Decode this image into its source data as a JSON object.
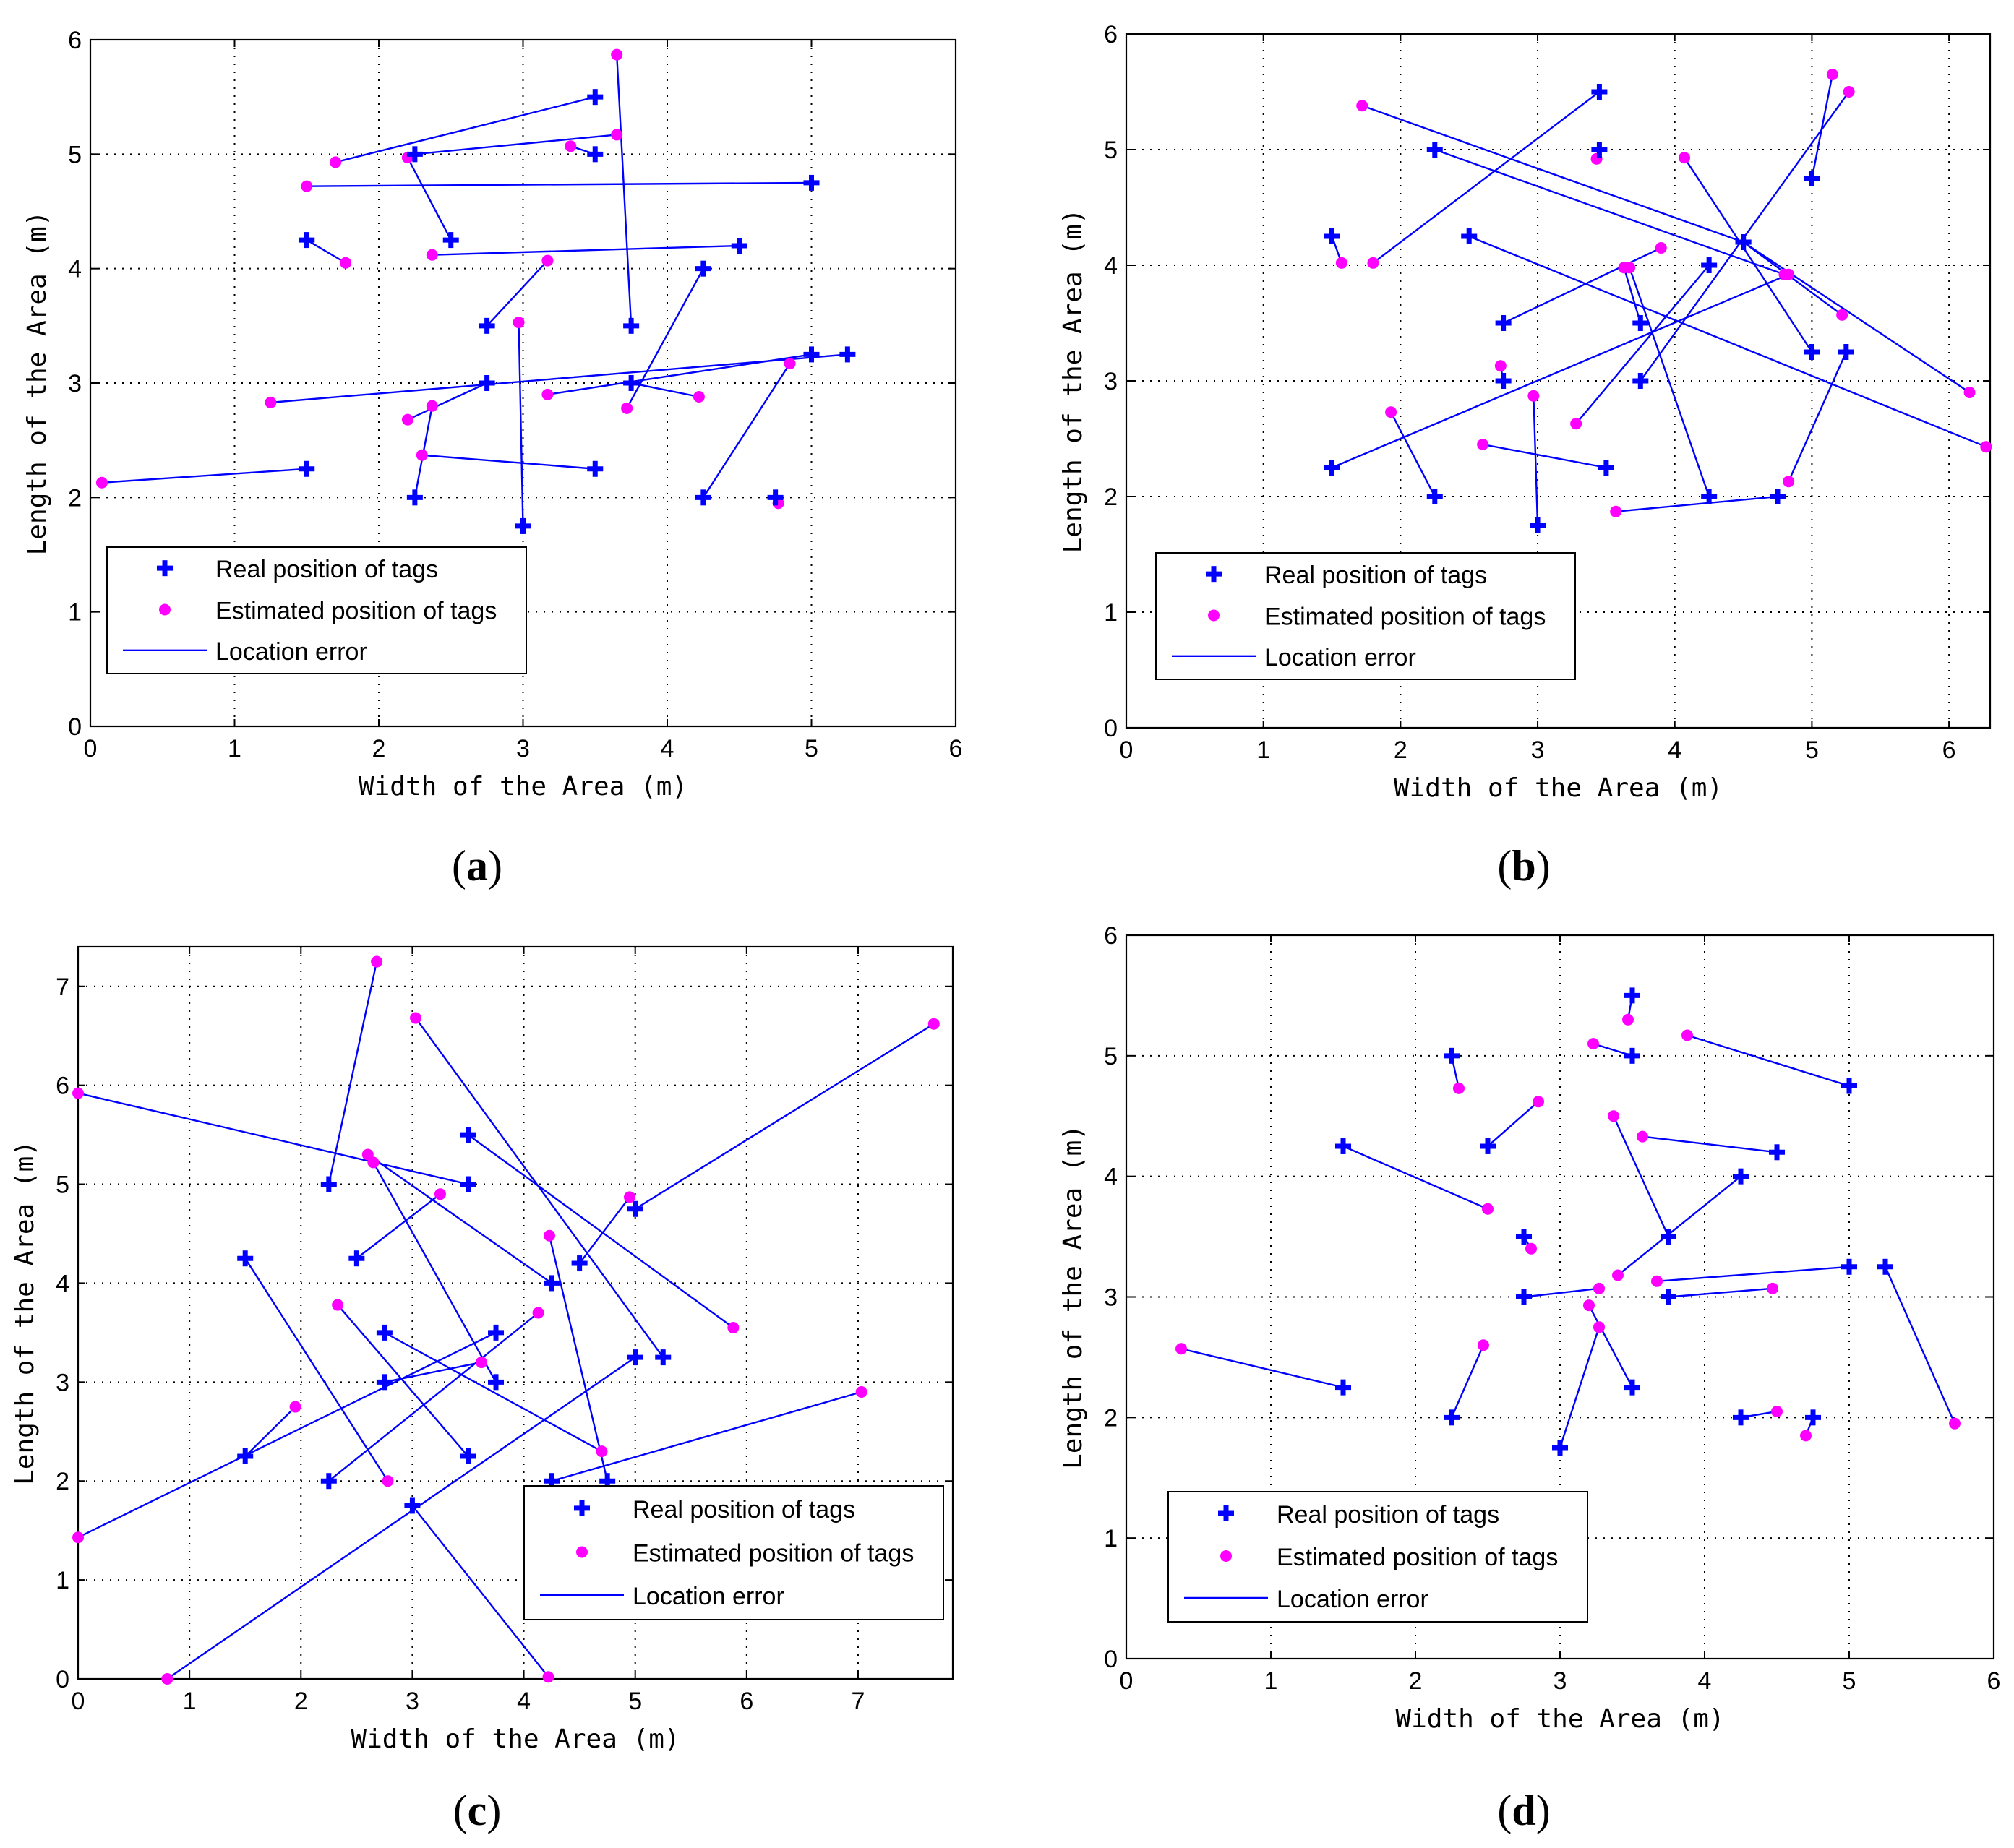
{
  "colors": {
    "real": "#0000ff",
    "estimated": "#ff00ff",
    "error_line": "#0000ff"
  },
  "icons": {
    "real": "plus-marker-icon",
    "estimated": "dot-marker-icon",
    "error": "line-segment-icon"
  },
  "chart_data": [
    {
      "id": "a",
      "type": "scatter",
      "caption_letter": "a",
      "xlabel": "Width of the Area (m)",
      "ylabel": "Length of the Area (m)",
      "xlim": [
        0,
        6
      ],
      "ylim": [
        0,
        6
      ],
      "xticks": [
        0,
        1,
        2,
        3,
        4,
        5,
        6
      ],
      "yticks": [
        0,
        1,
        2,
        3,
        4,
        5,
        6
      ],
      "grid": true,
      "legend_position": "lower-left",
      "legend": [
        "Real position of tags",
        "Estimated position of tags",
        "Location error"
      ],
      "pairs": [
        {
          "real": [
            3.5,
            5.5
          ],
          "est": [
            1.7,
            4.93
          ]
        },
        {
          "real": [
            2.25,
            5.0
          ],
          "est": [
            3.65,
            5.17
          ]
        },
        {
          "real": [
            3.5,
            5.0
          ],
          "est": [
            3.33,
            5.07
          ]
        },
        {
          "real": [
            2.5,
            4.25
          ],
          "est": [
            2.2,
            4.97
          ]
        },
        {
          "real": [
            3.75,
            3.5
          ],
          "est": [
            3.65,
            5.87
          ]
        },
        {
          "real": [
            5.0,
            4.75
          ],
          "est": [
            1.5,
            4.72
          ]
        },
        {
          "real": [
            1.5,
            4.25
          ],
          "est": [
            1.77,
            4.05
          ]
        },
        {
          "real": [
            4.5,
            4.2
          ],
          "est": [
            2.37,
            4.12
          ]
        },
        {
          "real": [
            2.75,
            3.5
          ],
          "est": [
            3.17,
            4.07
          ]
        },
        {
          "real": [
            4.25,
            4.0
          ],
          "est": [
            3.72,
            2.78
          ]
        },
        {
          "real": [
            5.25,
            3.25
          ],
          "est": [
            1.25,
            2.83
          ]
        },
        {
          "real": [
            5.0,
            3.25
          ],
          "est": [
            3.17,
            2.9
          ]
        },
        {
          "real": [
            2.75,
            3.0
          ],
          "est": [
            2.2,
            2.68
          ]
        },
        {
          "real": [
            3.75,
            3.0
          ],
          "est": [
            4.22,
            2.88
          ]
        },
        {
          "real": [
            2.25,
            2.0
          ],
          "est": [
            2.37,
            2.8
          ]
        },
        {
          "real": [
            3.5,
            2.25
          ],
          "est": [
            2.3,
            2.37
          ]
        },
        {
          "real": [
            3.0,
            1.75
          ],
          "est": [
            2.97,
            3.53
          ]
        },
        {
          "real": [
            4.25,
            2.0
          ],
          "est": [
            4.85,
            3.17
          ]
        },
        {
          "real": [
            4.75,
            2.0
          ],
          "est": [
            4.77,
            1.95
          ]
        },
        {
          "real": [
            1.5,
            2.25
          ],
          "est": [
            0.08,
            2.13
          ]
        }
      ]
    },
    {
      "id": "b",
      "type": "scatter",
      "caption_letter": "b",
      "xlabel": "Width of the Area (m)",
      "ylabel": "Length of the Area (m)",
      "xlim": [
        0,
        6.3
      ],
      "ylim": [
        0,
        6
      ],
      "xticks": [
        0,
        1,
        2,
        3,
        4,
        5,
        6
      ],
      "yticks": [
        0,
        1,
        2,
        3,
        4,
        5,
        6
      ],
      "grid": true,
      "legend_position": "lower-left",
      "legend": [
        "Real position of tags",
        "Estimated position of tags",
        "Location error"
      ],
      "pairs": [
        {
          "real": [
            3.45,
            5.5
          ],
          "est": [
            1.8,
            4.02
          ]
        },
        {
          "real": [
            3.45,
            5.0
          ],
          "est": [
            3.43,
            4.92
          ]
        },
        {
          "real": [
            2.25,
            5.0
          ],
          "est": [
            4.8,
            3.92
          ]
        },
        {
          "real": [
            1.5,
            4.25
          ],
          "est": [
            1.57,
            4.02
          ]
        },
        {
          "real": [
            2.5,
            4.25
          ],
          "est": [
            6.27,
            2.43
          ]
        },
        {
          "real": [
            4.5,
            4.2
          ],
          "est": [
            1.72,
            5.38
          ]
        },
        {
          "real": [
            4.25,
            4.0
          ],
          "est": [
            3.28,
            2.63
          ]
        },
        {
          "real": [
            2.75,
            3.5
          ],
          "est": [
            3.9,
            4.15
          ]
        },
        {
          "real": [
            3.75,
            3.5
          ],
          "est": [
            3.63,
            3.98
          ]
        },
        {
          "real": [
            3.75,
            3.0
          ],
          "est": [
            5.27,
            5.5
          ]
        },
        {
          "real": [
            5.0,
            3.25
          ],
          "est": [
            4.07,
            4.93
          ]
        },
        {
          "real": [
            5.0,
            4.75
          ],
          "est": [
            5.15,
            5.65
          ]
        },
        {
          "real": [
            5.25,
            3.25
          ],
          "est": [
            4.83,
            2.13
          ]
        },
        {
          "real": [
            2.75,
            3.0
          ],
          "est": [
            2.73,
            3.13
          ]
        },
        {
          "real": [
            1.5,
            2.25
          ],
          "est": [
            4.83,
            3.92
          ]
        },
        {
          "real": [
            2.25,
            2.0
          ],
          "est": [
            1.93,
            2.73
          ]
        },
        {
          "real": [
            3.5,
            2.25
          ],
          "est": [
            2.6,
            2.45
          ]
        },
        {
          "real": [
            3.0,
            1.75
          ],
          "est": [
            2.97,
            2.87
          ]
        },
        {
          "real": [
            4.25,
            2.0
          ],
          "est": [
            3.67,
            3.98
          ]
        },
        {
          "real": [
            4.75,
            2.0
          ],
          "est": [
            3.57,
            1.87
          ]
        },
        {
          "real": [
            4.5,
            4.2
          ],
          "est": [
            6.15,
            2.9
          ]
        },
        {
          "real": [
            4.5,
            4.2
          ],
          "est": [
            5.22,
            3.57
          ]
        }
      ]
    },
    {
      "id": "c",
      "type": "scatter",
      "caption_letter": "c",
      "xlabel": "Width of the Area (m)",
      "ylabel": "Length of the Area (m)",
      "xlim": [
        0,
        7.85
      ],
      "ylim": [
        0,
        7.4
      ],
      "xticks": [
        0,
        1,
        2,
        3,
        4,
        5,
        6,
        7
      ],
      "yticks": [
        0,
        1,
        2,
        3,
        4,
        5,
        6,
        7
      ],
      "grid": true,
      "legend_position": "lower-right",
      "legend": [
        "Real position of tags",
        "Estimated position of tags",
        "Location error"
      ],
      "pairs": [
        {
          "real": [
            2.25,
            5.0
          ],
          "est": [
            2.68,
            7.25
          ]
        },
        {
          "real": [
            3.5,
            5.0
          ],
          "est": [
            0.0,
            5.92
          ]
        },
        {
          "real": [
            3.5,
            5.5
          ],
          "est": [
            5.88,
            3.55
          ]
        },
        {
          "real": [
            4.25,
            4.0
          ],
          "est": [
            2.6,
            5.3
          ]
        },
        {
          "real": [
            4.75,
            2.0
          ],
          "est": [
            4.23,
            4.48
          ]
        },
        {
          "real": [
            5.0,
            4.75
          ],
          "est": [
            7.68,
            6.62
          ]
        },
        {
          "real": [
            4.5,
            4.2
          ],
          "est": [
            4.95,
            4.87
          ]
        },
        {
          "real": [
            3.75,
            3.0
          ],
          "est": [
            2.65,
            5.22
          ]
        },
        {
          "real": [
            2.5,
            4.25
          ],
          "est": [
            3.25,
            4.9
          ]
        },
        {
          "real": [
            5.25,
            3.25
          ],
          "est": [
            3.03,
            6.68
          ]
        },
        {
          "real": [
            1.5,
            4.25
          ],
          "est": [
            2.78,
            2.0
          ]
        },
        {
          "real": [
            3.5,
            2.25
          ],
          "est": [
            2.33,
            3.78
          ]
        },
        {
          "real": [
            2.75,
            3.5
          ],
          "est": [
            4.7,
            2.3
          ]
        },
        {
          "real": [
            2.25,
            2.0
          ],
          "est": [
            4.13,
            3.7
          ]
        },
        {
          "real": [
            3.75,
            3.5
          ],
          "est": [
            0.0,
            1.43
          ]
        },
        {
          "real": [
            1.5,
            2.25
          ],
          "est": [
            1.95,
            2.75
          ]
        },
        {
          "real": [
            2.75,
            3.0
          ],
          "est": [
            3.62,
            3.2
          ]
        },
        {
          "real": [
            5.0,
            3.25
          ],
          "est": [
            0.8,
            0.0
          ]
        },
        {
          "real": [
            3.0,
            1.75
          ],
          "est": [
            4.22,
            0.02
          ]
        },
        {
          "real": [
            4.25,
            2.0
          ],
          "est": [
            7.03,
            2.9
          ]
        }
      ]
    },
    {
      "id": "d",
      "type": "scatter",
      "caption_letter": "d",
      "xlabel": "Width of the Area (m)",
      "ylabel": "Length of the Area (m)",
      "xlim": [
        0,
        6
      ],
      "ylim": [
        0,
        6
      ],
      "xticks": [
        0,
        1,
        2,
        3,
        4,
        5,
        6
      ],
      "yticks": [
        0,
        1,
        2,
        3,
        4,
        5,
        6
      ],
      "grid": true,
      "legend_position": "lower-left",
      "legend": [
        "Real position of tags",
        "Estimated position of tags",
        "Location error"
      ],
      "pairs": [
        {
          "real": [
            3.5,
            5.5
          ],
          "est": [
            3.47,
            5.3
          ]
        },
        {
          "real": [
            3.5,
            5.0
          ],
          "est": [
            3.23,
            5.1
          ]
        },
        {
          "real": [
            2.25,
            5.0
          ],
          "est": [
            2.3,
            4.73
          ]
        },
        {
          "real": [
            5.0,
            4.75
          ],
          "est": [
            3.88,
            5.17
          ]
        },
        {
          "real": [
            2.5,
            4.25
          ],
          "est": [
            2.85,
            4.62
          ]
        },
        {
          "real": [
            1.5,
            4.25
          ],
          "est": [
            2.5,
            3.73
          ]
        },
        {
          "real": [
            4.5,
            4.2
          ],
          "est": [
            3.57,
            4.33
          ]
        },
        {
          "real": [
            3.75,
            3.5
          ],
          "est": [
            3.37,
            4.5
          ]
        },
        {
          "real": [
            4.25,
            4.0
          ],
          "est": [
            3.4,
            3.18
          ]
        },
        {
          "real": [
            2.75,
            3.5
          ],
          "est": [
            2.8,
            3.4
          ]
        },
        {
          "real": [
            5.0,
            3.25
          ],
          "est": [
            3.67,
            3.13
          ]
        },
        {
          "real": [
            3.75,
            3.0
          ],
          "est": [
            4.47,
            3.07
          ]
        },
        {
          "real": [
            2.75,
            3.0
          ],
          "est": [
            3.27,
            3.07
          ]
        },
        {
          "real": [
            5.25,
            3.25
          ],
          "est": [
            5.73,
            1.95
          ]
        },
        {
          "real": [
            3.5,
            2.25
          ],
          "est": [
            3.2,
            2.93
          ]
        },
        {
          "real": [
            3.0,
            1.75
          ],
          "est": [
            3.27,
            2.75
          ]
        },
        {
          "real": [
            2.25,
            2.0
          ],
          "est": [
            2.47,
            2.6
          ]
        },
        {
          "real": [
            1.5,
            2.25
          ],
          "est": [
            0.38,
            2.57
          ]
        },
        {
          "real": [
            4.25,
            2.0
          ],
          "est": [
            4.5,
            2.05
          ]
        },
        {
          "real": [
            4.75,
            2.0
          ],
          "est": [
            4.7,
            1.85
          ]
        }
      ]
    }
  ]
}
